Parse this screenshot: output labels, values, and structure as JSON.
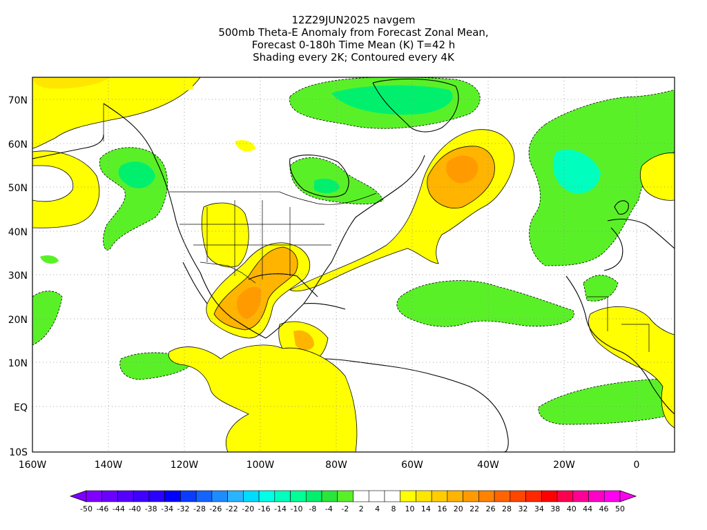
{
  "title": {
    "lines": [
      "12Z29JUN2025 navgem",
      "500mb Theta-E Anomaly from Forecast Zonal Mean,",
      "Forecast 0-180h Time Mean (K) T=42 h",
      "Shading every 2K; Contoured every 4K"
    ]
  },
  "map": {
    "lat_labels": [
      "70N",
      "60N",
      "50N",
      "40N",
      "30N",
      "20N",
      "10N",
      "EQ",
      "10S"
    ],
    "lon_labels": [
      "160W",
      "140W",
      "120W",
      "100W",
      "80W",
      "60W",
      "40W",
      "20W",
      "0"
    ]
  },
  "colorbar": {
    "labels": [
      "-50",
      "-46",
      "-44",
      "-40",
      "-38",
      "-34",
      "-32",
      "-28",
      "-26",
      "-22",
      "-20",
      "-16",
      "-14",
      "-10",
      "-8",
      "-4",
      "-2",
      "2",
      "4",
      "8",
      "10",
      "14",
      "16",
      "20",
      "22",
      "26",
      "28",
      "32",
      "34",
      "38",
      "40",
      "44",
      "46",
      "50"
    ],
    "colors": [
      "#7f00ff",
      "#6a00ff",
      "#5500ff",
      "#3f00ff",
      "#2a00ff",
      "#0000ff",
      "#0a3cff",
      "#1464ff",
      "#1e8cff",
      "#28b4ff",
      "#00dcff",
      "#00ffe6",
      "#00ffbe",
      "#00ff96",
      "#00f06e",
      "#28e63c",
      "#5af028",
      "#ffffff",
      "#ffffff",
      "#ffffff",
      "#ffff00",
      "#ffe600",
      "#ffcd00",
      "#ffb400",
      "#ff9b00",
      "#ff8200",
      "#ff6400",
      "#ff4600",
      "#ff2800",
      "#ff0000",
      "#ff0050",
      "#ff0096",
      "#ff00c8",
      "#ff00f0"
    ]
  },
  "colors": {
    "green": "#5af028",
    "light_green": "#00f06e",
    "cyan_green": "#00ffbe",
    "yellow": "#ffff00",
    "gold": "#ffe600",
    "orange": "#ffb400",
    "dark_orange": "#ff9b00"
  }
}
